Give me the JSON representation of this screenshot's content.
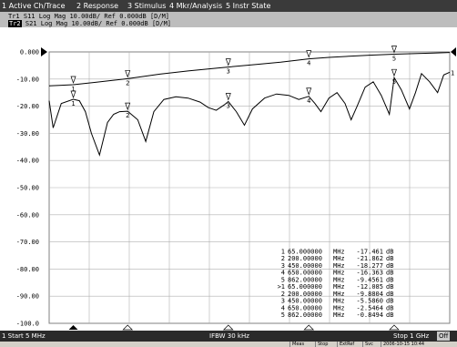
{
  "menu": [
    {
      "label": "1 Active Ch/Trace"
    },
    {
      "label": "2 Response"
    },
    {
      "label": "3 Stimulus"
    },
    {
      "label": "4 Mkr/Analysis"
    },
    {
      "label": "5 Instr State"
    }
  ],
  "traces": [
    {
      "badge": "Tr1",
      "text": " S11 Log Mag 10.00dB/ Ref 0.000dB [D/M]"
    },
    {
      "badge": "Tr2",
      "text": " S21 Log Mag 10.00dB/ Ref 0.000dB [D/M]"
    }
  ],
  "chart_data": {
    "type": "line",
    "xlabel": "",
    "ylabel": "",
    "xlim": [
      5,
      1000
    ],
    "ylim": [
      -100,
      0
    ],
    "y_ticks": [
      "0.000",
      "-10.00",
      "-20.00",
      "-30.00",
      "-40.00",
      "-50.00",
      "-60.00",
      "-70.00",
      "-80.00",
      "-90.00",
      "-100.0"
    ],
    "grid": true,
    "series": [
      {
        "name": "S11",
        "color": "#000000",
        "x": [
          5,
          30,
          65,
          120,
          200,
          280,
          350,
          420,
          450,
          520,
          580,
          650,
          700,
          750,
          800,
          862,
          920,
          960,
          1000
        ],
        "y": [
          -12.5,
          -12.3,
          -12.085,
          -11.2,
          -9.88,
          -8.2,
          -7.0,
          -6.0,
          -5.586,
          -4.6,
          -3.8,
          -2.546,
          -2.0,
          -1.6,
          -1.2,
          -0.849,
          -0.6,
          -0.4,
          -0.2
        ]
      },
      {
        "name": "S21",
        "color": "#000000",
        "x": [
          5,
          15,
          35,
          65,
          80,
          95,
          110,
          130,
          150,
          165,
          180,
          200,
          225,
          245,
          265,
          290,
          320,
          350,
          380,
          400,
          420,
          440,
          450,
          470,
          490,
          510,
          540,
          570,
          600,
          625,
          650,
          665,
          680,
          700,
          720,
          740,
          755,
          770,
          790,
          810,
          830,
          850,
          862,
          880,
          900,
          915,
          930,
          950,
          970,
          985,
          1000
        ],
        "y": [
          -18.0,
          -28.0,
          -19.0,
          -17.461,
          -18.0,
          -22.0,
          -30.0,
          -38.0,
          -26.0,
          -23.0,
          -22.0,
          -21.862,
          -25.0,
          -33.0,
          -22.0,
          -17.5,
          -16.5,
          -17.0,
          -18.5,
          -20.5,
          -21.5,
          -19.5,
          -18.277,
          -22.0,
          -27.0,
          -21.0,
          -17.0,
          -15.5,
          -16.0,
          -17.5,
          -16.363,
          -19.0,
          -22.0,
          -17.0,
          -15.0,
          -19.0,
          -25.0,
          -20.0,
          -13.0,
          -11.0,
          -16.0,
          -23.0,
          -9.456,
          -14.0,
          -21.0,
          -15.0,
          -8.0,
          -11.0,
          -15.0,
          -8.5,
          -7.5
        ]
      }
    ],
    "markers": [
      {
        "id": "1",
        "trace": "S21",
        "x": 65,
        "y": -17.461
      },
      {
        "id": "2",
        "trace": "S21",
        "x": 200,
        "y": -21.862
      },
      {
        "id": "3",
        "trace": "S21",
        "x": 450,
        "y": -18.277
      },
      {
        "id": "4",
        "trace": "S21",
        "x": 650,
        "y": -16.363
      },
      {
        "id": "5",
        "trace": "S21",
        "x": 862,
        "y": -9.4561
      },
      {
        "id": "1",
        "trace": "S11",
        "x": 65,
        "y": -12.085
      },
      {
        "id": "2",
        "trace": "S11",
        "x": 200,
        "y": -9.8804
      },
      {
        "id": "3",
        "trace": "S11",
        "x": 450,
        "y": -5.586
      },
      {
        "id": "4",
        "trace": "S11",
        "x": 650,
        "y": -2.5464
      },
      {
        "id": "5",
        "trace": "S11",
        "x": 862,
        "y": -0.8494
      }
    ],
    "marker_table": [
      {
        "id": "1",
        "stim": "65.000000",
        "unit": "MHz",
        "val": "-17.461",
        "vu": "dB"
      },
      {
        "id": "2",
        "stim": "200.00000",
        "unit": "MHz",
        "val": "-21.862",
        "vu": "dB"
      },
      {
        "id": "3",
        "stim": "450.00000",
        "unit": "MHz",
        "val": "-18.277",
        "vu": "dB"
      },
      {
        "id": "4",
        "stim": "650.00000",
        "unit": "MHz",
        "val": "-16.363",
        "vu": "dB"
      },
      {
        "id": "5",
        "stim": "862.00000",
        "unit": "MHz",
        "val": "-9.4561",
        "vu": "dB"
      },
      {
        "id": ">1",
        "stim": "65.000000",
        "unit": "MHz",
        "val": "-12.085",
        "vu": "dB"
      },
      {
        "id": "2",
        "stim": "200.00000",
        "unit": "MHz",
        "val": "-9.8804",
        "vu": "dB"
      },
      {
        "id": "3",
        "stim": "450.00000",
        "unit": "MHz",
        "val": "-5.5860",
        "vu": "dB"
      },
      {
        "id": "4",
        "stim": "650.00000",
        "unit": "MHz",
        "val": "-2.5464",
        "vu": "dB"
      },
      {
        "id": "5",
        "stim": "862.00000",
        "unit": "MHz",
        "val": "-0.8494",
        "vu": "dB"
      }
    ]
  },
  "status": {
    "start": "1  Start 5 MHz",
    "ifbw": "IFBW 30 kHz",
    "stop": "Stop 1 GHz",
    "off": "Off"
  },
  "taskbar": [
    "Meas",
    "Stop",
    "ExtRef",
    "Svc",
    "2006-10-15 10:44"
  ]
}
